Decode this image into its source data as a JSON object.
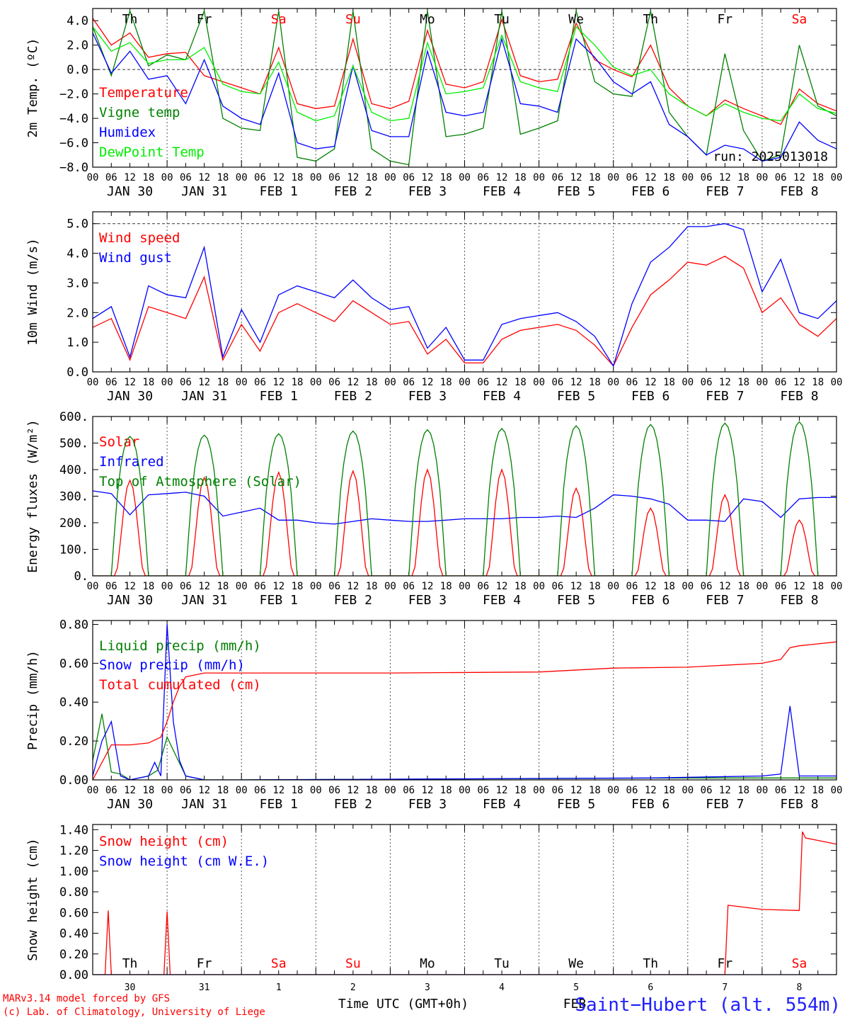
{
  "chart_data": [
    {
      "type": "line",
      "ylabel": "2m Temp. (ºC)",
      "ylim": [
        -8,
        5
      ],
      "yticks": [
        "4.0",
        "2.0",
        "0.0",
        "−2.0",
        "−4.0",
        "−6.0",
        "−8.0"
      ],
      "ytick_values": [
        4,
        2,
        0,
        -2,
        -4,
        -6,
        -8
      ],
      "reference_line": 0,
      "weekdays": [
        {
          "label": "Th",
          "color": "#000000"
        },
        {
          "label": "Fr",
          "color": "#000000"
        },
        {
          "label": "Sa",
          "color": "#ff0000"
        },
        {
          "label": "Su",
          "color": "#ff0000"
        },
        {
          "label": "Mo",
          "color": "#000000"
        },
        {
          "label": "Tu",
          "color": "#000000"
        },
        {
          "label": "We",
          "color": "#000000"
        },
        {
          "label": "Th",
          "color": "#000000"
        },
        {
          "label": "Fr",
          "color": "#000000"
        },
        {
          "label": "Sa",
          "color": "#ff0000"
        }
      ],
      "run_label": "run: 2025013018",
      "series": [
        {
          "name": "Temperature",
          "color": "#ff0000",
          "x": [
            0,
            6,
            12,
            18,
            24,
            30,
            36,
            42,
            48,
            54,
            60,
            66,
            72,
            78,
            84,
            90,
            96,
            102,
            108,
            114,
            120,
            126,
            132,
            138,
            144,
            150,
            156,
            162,
            168,
            174,
            180,
            186,
            192,
            198,
            204,
            210,
            216,
            222,
            228,
            234,
            240
          ],
          "values": [
            4.2,
            2.0,
            3.0,
            1.0,
            1.3,
            1.4,
            -0.5,
            -1.0,
            -1.5,
            -2.0,
            1.8,
            -2.8,
            -3.2,
            -3.0,
            2.5,
            -2.8,
            -3.2,
            -2.6,
            3.2,
            -1.2,
            -1.5,
            -1.0,
            4.1,
            -0.5,
            -1.0,
            -0.8,
            3.8,
            0.8,
            0.0,
            -0.6,
            2.0,
            -1.5,
            -3.0,
            -3.8,
            -2.5,
            -3.2,
            -3.8,
            -4.5,
            -1.6,
            -2.8,
            -3.4
          ]
        },
        {
          "name": "Vigne temp",
          "color": "#008000",
          "x": [
            0,
            6,
            12,
            18,
            24,
            30,
            36,
            42,
            48,
            54,
            60,
            66,
            72,
            78,
            84,
            90,
            96,
            102,
            108,
            114,
            120,
            126,
            132,
            138,
            144,
            150,
            156,
            162,
            168,
            174,
            180,
            186,
            192,
            198,
            204,
            210,
            216,
            222,
            228,
            234,
            240
          ],
          "values": [
            3.5,
            -0.5,
            4.8,
            0.3,
            1.2,
            0.8,
            4.8,
            -4.0,
            -4.8,
            -5.0,
            4.8,
            -7.2,
            -7.5,
            -6.5,
            4.8,
            -6.5,
            -7.5,
            -7.8,
            4.8,
            -5.5,
            -5.3,
            -4.8,
            4.8,
            -5.3,
            -4.8,
            -4.2,
            4.8,
            -1.0,
            -2.0,
            -2.2,
            4.8,
            -3.5,
            -5.5,
            -7.0,
            1.3,
            -5.0,
            -7.5,
            -7.0,
            2.0,
            -3.0,
            -3.8
          ]
        },
        {
          "name": "Humidex",
          "color": "#0000ff",
          "x": [
            0,
            6,
            12,
            18,
            24,
            30,
            36,
            42,
            48,
            54,
            60,
            66,
            72,
            78,
            84,
            90,
            96,
            102,
            108,
            114,
            120,
            126,
            132,
            138,
            144,
            150,
            156,
            162,
            168,
            174,
            180,
            186,
            192,
            198,
            204,
            210,
            216,
            222,
            228,
            234,
            240
          ],
          "values": [
            3.0,
            -0.3,
            1.5,
            -0.8,
            -0.5,
            -2.8,
            0.8,
            -3.0,
            -4.0,
            -4.5,
            -0.3,
            -6.0,
            -6.5,
            -6.3,
            0.3,
            -5.0,
            -5.5,
            -5.5,
            1.5,
            -3.5,
            -3.8,
            -3.5,
            2.5,
            -2.8,
            -3.0,
            -3.5,
            2.5,
            1.0,
            -1.0,
            -2.0,
            -1.0,
            -4.5,
            -5.5,
            -7.0,
            -6.2,
            -6.5,
            -7.5,
            -7.2,
            -4.3,
            -5.8,
            -6.5
          ]
        },
        {
          "name": "DewPoint Temp",
          "color": "#00ee00",
          "x": [
            0,
            6,
            12,
            18,
            24,
            30,
            36,
            42,
            48,
            54,
            60,
            66,
            72,
            78,
            84,
            90,
            96,
            102,
            108,
            114,
            120,
            126,
            132,
            138,
            144,
            150,
            156,
            162,
            168,
            174,
            180,
            186,
            192,
            198,
            204,
            210,
            216,
            222,
            228,
            234,
            240
          ],
          "values": [
            3.5,
            1.5,
            2.2,
            0.5,
            0.8,
            0.8,
            1.8,
            -1.2,
            -1.8,
            -2.0,
            0.6,
            -3.5,
            -4.2,
            -3.8,
            0.3,
            -3.5,
            -4.2,
            -4.0,
            2.2,
            -2.0,
            -1.8,
            -1.5,
            2.8,
            -1.0,
            -1.5,
            -1.8,
            3.5,
            2.0,
            0.2,
            -0.5,
            0.0,
            -2.0,
            -3.0,
            -3.8,
            -2.8,
            -3.5,
            -4.0,
            -4.2,
            -2.0,
            -3.2,
            -3.6
          ]
        }
      ]
    },
    {
      "type": "line",
      "ylabel": "10m Wind (m/s)",
      "ylim": [
        0,
        5.4
      ],
      "yticks": [
        "5.0",
        "4.0",
        "3.0",
        "2.0",
        "1.0",
        "0.0"
      ],
      "ytick_values": [
        5,
        4,
        3,
        2,
        1,
        0
      ],
      "reference_line": 5,
      "series": [
        {
          "name": "Wind speed",
          "color": "#ff0000",
          "x": [
            0,
            6,
            12,
            18,
            24,
            30,
            36,
            42,
            48,
            54,
            60,
            66,
            72,
            78,
            84,
            90,
            96,
            102,
            108,
            114,
            120,
            126,
            132,
            138,
            144,
            150,
            156,
            162,
            168,
            174,
            180,
            186,
            192,
            198,
            204,
            210,
            216,
            222,
            228,
            234,
            240
          ],
          "values": [
            1.5,
            1.8,
            0.4,
            2.2,
            2.0,
            1.8,
            3.2,
            0.4,
            1.6,
            0.7,
            2.0,
            2.3,
            2.0,
            1.7,
            2.4,
            2.0,
            1.6,
            1.7,
            0.6,
            1.1,
            0.3,
            0.3,
            1.1,
            1.4,
            1.5,
            1.6,
            1.4,
            0.9,
            0.2,
            1.5,
            2.6,
            3.1,
            3.7,
            3.6,
            3.9,
            3.5,
            2.0,
            2.5,
            1.6,
            1.2,
            1.8
          ]
        },
        {
          "name": "Wind gust",
          "color": "#0000ff",
          "x": [
            0,
            6,
            12,
            18,
            24,
            30,
            36,
            42,
            48,
            54,
            60,
            66,
            72,
            78,
            84,
            90,
            96,
            102,
            108,
            114,
            120,
            126,
            132,
            138,
            144,
            150,
            156,
            162,
            168,
            174,
            180,
            186,
            192,
            198,
            204,
            210,
            216,
            222,
            228,
            234,
            240
          ],
          "values": [
            1.8,
            2.2,
            0.5,
            2.9,
            2.6,
            2.5,
            4.2,
            0.5,
            2.1,
            1.0,
            2.6,
            2.9,
            2.7,
            2.5,
            3.1,
            2.5,
            2.1,
            2.2,
            0.8,
            1.5,
            0.4,
            0.4,
            1.6,
            1.8,
            1.9,
            2.0,
            1.7,
            1.2,
            0.2,
            2.3,
            3.7,
            4.2,
            4.9,
            4.9,
            5.0,
            4.8,
            2.7,
            3.8,
            2.0,
            1.8,
            2.4
          ]
        }
      ]
    },
    {
      "type": "line",
      "ylabel": "Energy fluxes (W/m²)",
      "ylim": [
        0,
        600
      ],
      "yticks": [
        "600.",
        "500.",
        "400.",
        "300.",
        "200.",
        "100.",
        "0."
      ],
      "ytick_values": [
        600,
        500,
        400,
        300,
        200,
        100,
        0
      ],
      "series": [
        {
          "name": "Solar",
          "color": "#ff0000",
          "peaks": [
            360,
            370,
            390,
            395,
            400,
            400,
            330,
            255,
            305,
            210
          ]
        },
        {
          "name": "Infrared",
          "color": "#0000ff",
          "x": [
            0,
            6,
            12,
            18,
            24,
            30,
            36,
            42,
            48,
            54,
            60,
            66,
            72,
            78,
            84,
            90,
            96,
            102,
            108,
            114,
            120,
            126,
            132,
            138,
            144,
            150,
            156,
            162,
            168,
            174,
            180,
            186,
            192,
            198,
            204,
            210,
            216,
            222,
            228,
            234,
            240
          ],
          "values": [
            320,
            310,
            230,
            305,
            310,
            315,
            300,
            225,
            240,
            255,
            210,
            210,
            200,
            195,
            205,
            215,
            210,
            205,
            205,
            210,
            215,
            215,
            215,
            220,
            220,
            225,
            220,
            255,
            305,
            300,
            290,
            270,
            210,
            210,
            205,
            290,
            280,
            220,
            290,
            295,
            295
          ]
        },
        {
          "name": "Top of Atmosphere (Solar)",
          "color": "#008000",
          "peaks": [
            525,
            530,
            535,
            545,
            550,
            555,
            565,
            570,
            575,
            580
          ]
        }
      ]
    },
    {
      "type": "line",
      "ylabel": "Precip (mm/h)",
      "ylim": [
        0,
        0.82
      ],
      "yticks": [
        "0.80",
        "0.60",
        "0.40",
        "0.20",
        "0.00"
      ],
      "ytick_values": [
        0.8,
        0.6,
        0.4,
        0.2,
        0
      ],
      "series": [
        {
          "name": "Liquid precip (mm/h)",
          "color": "#008000",
          "x": [
            0,
            3,
            6,
            9,
            12,
            18,
            21,
            24,
            27,
            30,
            36,
            48,
            192,
            216,
            234,
            240
          ],
          "values": [
            0.1,
            0.34,
            0.04,
            0.03,
            0.0,
            0.02,
            0.05,
            0.22,
            0.12,
            0.02,
            0.0,
            0.0,
            0.01,
            0.01,
            0.01,
            0.01
          ]
        },
        {
          "name": "Snow precip (mm/h)",
          "color": "#0000ff",
          "x": [
            0,
            3,
            6,
            9,
            12,
            18,
            20,
            22,
            24,
            26,
            28,
            30,
            36,
            48,
            180,
            216,
            222,
            225,
            228,
            234,
            240
          ],
          "values": [
            0.02,
            0.2,
            0.3,
            0.02,
            0.0,
            0.02,
            0.09,
            0.02,
            0.8,
            0.3,
            0.1,
            0.02,
            0.0,
            0.0,
            0.01,
            0.02,
            0.03,
            0.38,
            0.02,
            0.02,
            0.02
          ]
        },
        {
          "name": "Total cumulated (cm)",
          "color": "#ff0000",
          "x": [
            0,
            6,
            12,
            18,
            22,
            24,
            26,
            28,
            30,
            36,
            48,
            96,
            144,
            168,
            192,
            216,
            222,
            225,
            228,
            240
          ],
          "values": [
            0.0,
            0.18,
            0.18,
            0.19,
            0.22,
            0.3,
            0.4,
            0.48,
            0.53,
            0.55,
            0.55,
            0.55,
            0.555,
            0.575,
            0.58,
            0.6,
            0.62,
            0.68,
            0.69,
            0.71
          ]
        }
      ]
    },
    {
      "type": "line",
      "ylabel": "Snow height (cm)",
      "ylim": [
        0,
        1.45
      ],
      "yticks": [
        "1.40",
        "1.20",
        "1.00",
        "0.80",
        "0.60",
        "0.40",
        "0.20",
        "0.00"
      ],
      "ytick_values": [
        1.4,
        1.2,
        1.0,
        0.8,
        0.6,
        0.4,
        0.2,
        0
      ],
      "series": [
        {
          "name": "Snow height (cm)",
          "color": "#ff0000",
          "x": [
            0,
            4,
            5,
            6,
            22,
            23,
            24,
            25,
            26,
            204,
            205,
            216,
            228,
            229,
            230,
            240
          ],
          "values": [
            0,
            0,
            0.62,
            0,
            0,
            0,
            0.61,
            0,
            0,
            0,
            0.67,
            0.63,
            0.62,
            1.38,
            1.32,
            1.26
          ]
        },
        {
          "name": "Snow height (cm W.E.)",
          "color": "#0000ff",
          "x": [
            0,
            240
          ],
          "values": [
            0,
            0
          ]
        }
      ],
      "day_numbers": [
        "30",
        "31",
        "1",
        "2",
        "3",
        "4",
        "5",
        "6",
        "7",
        "8"
      ],
      "xlabel": "Time UTC (GMT+0h)"
    }
  ],
  "x_axis": {
    "hour_labels": [
      "00",
      "06",
      "12",
      "18"
    ],
    "final_hour_label": "00",
    "date_labels": [
      "JAN 30",
      "JAN 31",
      "FEB  1",
      "FEB  2",
      "FEB  3",
      "FEB  4",
      "FEB  5",
      "FEB  6",
      "FEB  7",
      "FEB  8"
    ],
    "hours_total": 240
  },
  "footer": {
    "model_line": "MARv3.14 model forced by GFS",
    "copyright_line": "(c) Lab. of Climatology, University of Liege",
    "station": "Saint−Hubert (alt. 554m)",
    "overlap_text": "FEB"
  }
}
